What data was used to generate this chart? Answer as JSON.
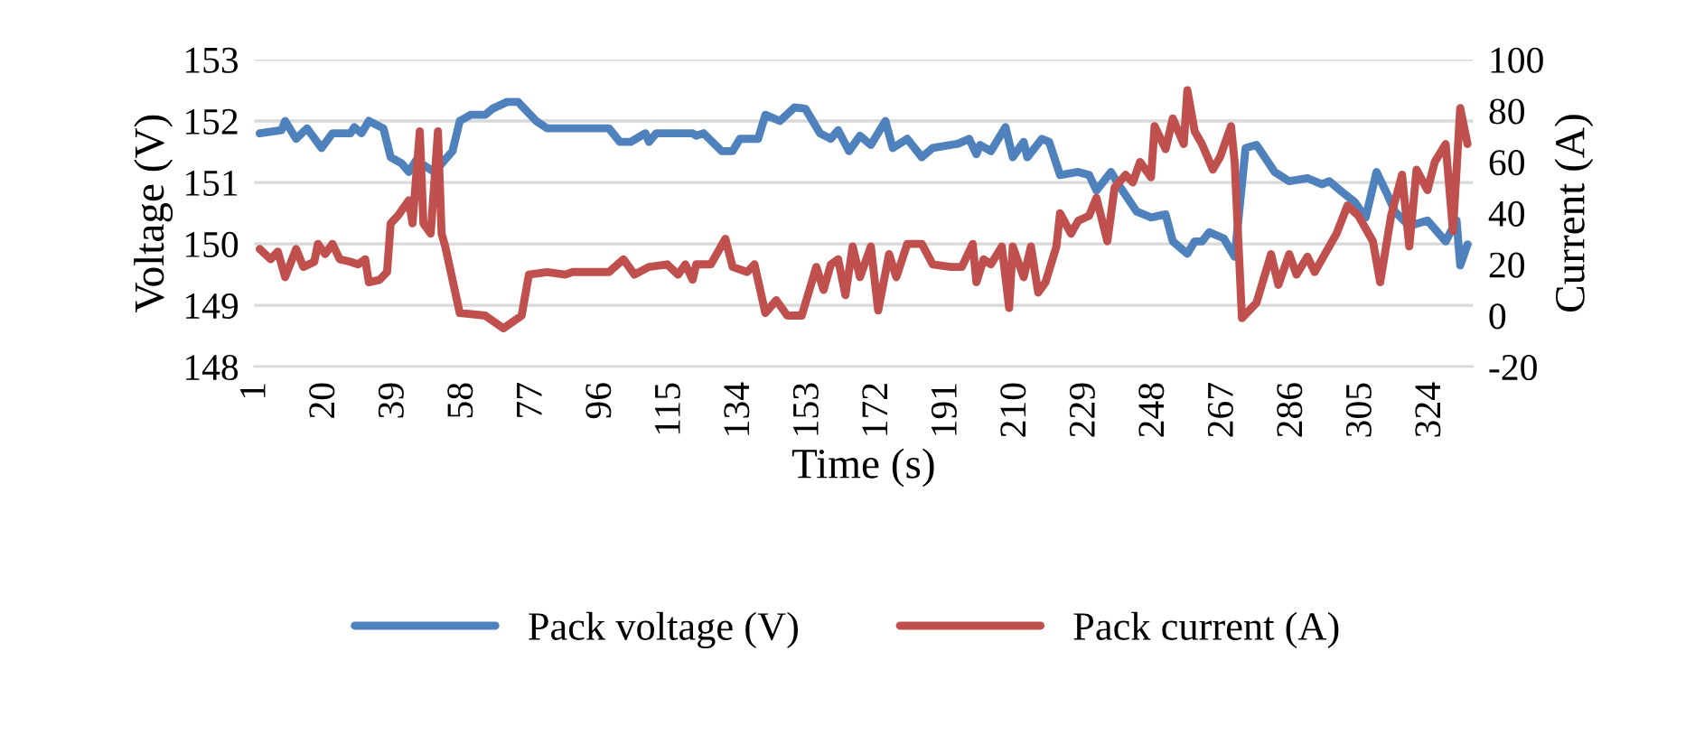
{
  "chart_data": {
    "type": "line",
    "xlabel": "Time (s)",
    "ylabel": "Voltage (V)",
    "y2label": "Current (A)",
    "xlim": [
      0.5,
      335.5
    ],
    "xticks": [
      1,
      20,
      39,
      58,
      77,
      96,
      115,
      134,
      153,
      172,
      191,
      210,
      229,
      248,
      267,
      286,
      305,
      324
    ],
    "ylim": [
      148,
      153
    ],
    "yticks": [
      148,
      149,
      150,
      151,
      152,
      153
    ],
    "y2lim": [
      -20,
      100
    ],
    "y2ticks": [
      -20,
      0,
      20,
      40,
      60,
      80,
      100
    ],
    "grid": "y",
    "legend": "bottom",
    "line_style": "solid",
    "marker": "none",
    "series": [
      {
        "name": "Pack voltage (V)",
        "color": "#4f81bd",
        "x": [
          2,
          8,
          9,
          12,
          15,
          19,
          22,
          27,
          28,
          30,
          32,
          36,
          38,
          41,
          43,
          45,
          50,
          55,
          57,
          60,
          64,
          66,
          70,
          73,
          78,
          81,
          98,
          101,
          104,
          108,
          109,
          111,
          114,
          121,
          122,
          124,
          129,
          132,
          134,
          139,
          141,
          145,
          149,
          152,
          156,
          159,
          161,
          164,
          167,
          170,
          174,
          176,
          180,
          184,
          187,
          194,
          197,
          199,
          200,
          203,
          207,
          209,
          212,
          213,
          217,
          219,
          222,
          227,
          230,
          232,
          236,
          238,
          243,
          247,
          251,
          253,
          257,
          259,
          261,
          263,
          267,
          270,
          273,
          276,
          281,
          285,
          290,
          294,
          296,
          299,
          303,
          306,
          309,
          312,
          314,
          318,
          323,
          328,
          331,
          332,
          334
        ],
        "values": [
          151.8,
          151.85,
          152.0,
          151.71,
          151.88,
          151.56,
          151.8,
          151.8,
          151.9,
          151.8,
          152.0,
          151.88,
          151.41,
          151.31,
          151.17,
          151.36,
          151.17,
          151.51,
          152.0,
          152.1,
          152.1,
          152.2,
          152.31,
          152.31,
          152.0,
          151.88,
          151.88,
          151.66,
          151.66,
          151.8,
          151.66,
          151.8,
          151.8,
          151.8,
          151.76,
          151.8,
          151.51,
          151.51,
          151.71,
          151.71,
          152.1,
          152.0,
          152.22,
          152.2,
          151.8,
          151.71,
          151.85,
          151.51,
          151.76,
          151.61,
          152.0,
          151.56,
          151.71,
          151.41,
          151.56,
          151.63,
          151.71,
          151.46,
          151.61,
          151.51,
          151.9,
          151.41,
          151.66,
          151.41,
          151.71,
          151.66,
          151.12,
          151.17,
          151.12,
          150.87,
          151.17,
          150.97,
          150.53,
          150.43,
          150.48,
          150.04,
          149.84,
          150.04,
          150.04,
          150.19,
          150.09,
          149.79,
          151.56,
          151.61,
          151.17,
          151.02,
          151.07,
          150.97,
          151.02,
          150.87,
          150.68,
          150.43,
          151.17,
          150.8,
          150.53,
          150.29,
          150.38,
          150.04,
          150.38,
          149.65,
          149.99
        ]
      },
      {
        "name": "Pack current (A)",
        "color": "#c0504d",
        "axis": "y2",
        "x": [
          2,
          5,
          7,
          9,
          12,
          14,
          17,
          18,
          20,
          22,
          24,
          27,
          29,
          31,
          32,
          35,
          37,
          38,
          40,
          43,
          44,
          46,
          47,
          49,
          51,
          52,
          53,
          57,
          64,
          69,
          74,
          76,
          81,
          86,
          88,
          98,
          102,
          105,
          109,
          114,
          117,
          119,
          121,
          122,
          126,
          130,
          132,
          136,
          138,
          141,
          144,
          147,
          151,
          155,
          157,
          159,
          161,
          163,
          165,
          167,
          170,
          172,
          175,
          177,
          180,
          184,
          187,
          192,
          195,
          198,
          199,
          201,
          203,
          206,
          208,
          209,
          212,
          214,
          216,
          218,
          221,
          222,
          225,
          227,
          230,
          232,
          235,
          237,
          240,
          242,
          244,
          247,
          248,
          251,
          253,
          256,
          257,
          259,
          261,
          264,
          266,
          269,
          270,
          272,
          276,
          280,
          282,
          285,
          287,
          290,
          292,
          294,
          298,
          301,
          304,
          308,
          310,
          313,
          316,
          318,
          320,
          323,
          325,
          328,
          330,
          332,
          334
        ],
        "values": [
          26,
          22,
          25,
          15,
          26,
          19,
          21,
          28,
          24,
          28,
          22,
          21,
          20,
          22,
          13,
          14,
          17,
          36,
          39,
          45,
          36,
          72,
          36,
          32,
          72,
          32,
          27,
          1,
          0,
          -5,
          0,
          16,
          17,
          16,
          17,
          17,
          22,
          16,
          19,
          20,
          16,
          20,
          14,
          20,
          20,
          30,
          19,
          17,
          20,
          1,
          6,
          0,
          0,
          19,
          10,
          20,
          22,
          8,
          27,
          15,
          27,
          2,
          24,
          15,
          28,
          28,
          20,
          19,
          19,
          28,
          13,
          22,
          20,
          27,
          3,
          27,
          15,
          27,
          9,
          13,
          27,
          40,
          32,
          37,
          39,
          46,
          29,
          50,
          55,
          52,
          60,
          54,
          74,
          65,
          77,
          67,
          88,
          72,
          67,
          57,
          62,
          74,
          60,
          -1,
          5,
          24,
          12,
          24,
          16,
          23,
          17,
          22,
          32,
          43,
          39,
          29,
          13,
          39,
          55,
          27,
          57,
          49,
          60,
          67,
          33,
          81,
          67
        ]
      }
    ]
  }
}
